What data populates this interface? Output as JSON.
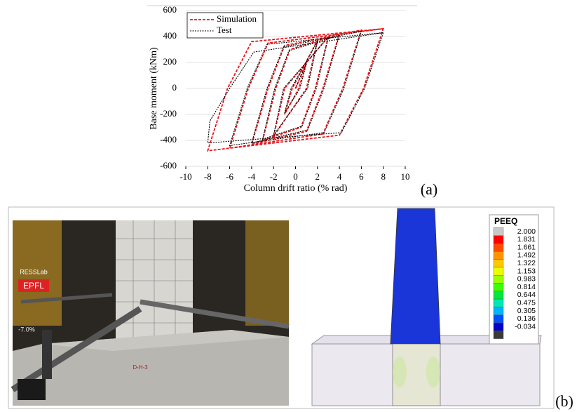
{
  "chart_data": {
    "type": "line",
    "x_label": "Column drift ratio (% rad)",
    "y_label": "Base moment (kNm)",
    "xlim": [
      -10,
      10
    ],
    "ylim": [
      -600,
      600
    ],
    "xticks": [
      -10,
      -8,
      -6,
      -4,
      -2,
      0,
      2,
      4,
      6,
      8,
      10
    ],
    "yticks": [
      -600,
      -400,
      -200,
      0,
      200,
      400,
      600
    ],
    "grid": true,
    "legend": "upper left",
    "series": [
      {
        "name": "Simulation",
        "color": "#e8141b",
        "line_style": "dashed",
        "x": [
          0,
          1,
          0.3,
          -1,
          -0.3,
          2,
          1,
          -2,
          -1,
          3,
          1.8,
          0.5,
          -3,
          -1.8,
          -0.5,
          4,
          2.5,
          1,
          -4,
          -2.5,
          -1,
          6,
          4.3,
          2.5,
          -6,
          -4.3,
          -2.5,
          8,
          6.2,
          4,
          -8,
          -6.2,
          -4,
          8
        ],
        "values": [
          0,
          200,
          0,
          -200,
          0,
          370,
          0,
          -370,
          0,
          400,
          0,
          -300,
          -400,
          0,
          300,
          420,
          0,
          -330,
          -430,
          0,
          330,
          450,
          0,
          -350,
          -460,
          0,
          350,
          460,
          0,
          -360,
          -480,
          0,
          360,
          460
        ]
      },
      {
        "name": "Test",
        "color": "#000000",
        "line_style": "dashed",
        "x": [
          0,
          1,
          0.4,
          -1,
          -0.4,
          2,
          1.1,
          -2,
          -1.1,
          3,
          1.9,
          0.6,
          -3,
          -1.9,
          -0.6,
          4,
          2.6,
          1.1,
          -4,
          -2.6,
          -1.1,
          6,
          4.4,
          2.6,
          -6,
          -4.4,
          -2.6,
          8,
          6.3,
          4.2,
          -8,
          -7.8,
          -6,
          -3.8,
          8
        ],
        "values": [
          0,
          190,
          0,
          -190,
          0,
          360,
          0,
          -360,
          0,
          395,
          0,
          -290,
          -390,
          0,
          290,
          410,
          0,
          -320,
          -420,
          0,
          320,
          440,
          0,
          -340,
          -440,
          0,
          340,
          430,
          0,
          -340,
          -420,
          -250,
          0,
          280,
          430
        ]
      }
    ]
  },
  "panel_a_label": "(a)",
  "photo": {
    "labels": [
      "RESSLab",
      "EPFL",
      "-7.0%",
      "D-H-3"
    ]
  },
  "contour": {
    "title": "PEEQ",
    "levels": [
      {
        "label": "2.000",
        "color": "#c8c8c8"
      },
      {
        "label": "1.831",
        "color": "#ff0000"
      },
      {
        "label": "1.661",
        "color": "#ff4a00"
      },
      {
        "label": "1.492",
        "color": "#ff9400"
      },
      {
        "label": "1.322",
        "color": "#ffc800"
      },
      {
        "label": "1.153",
        "color": "#e8ff00"
      },
      {
        "label": "0.983",
        "color": "#9cff00"
      },
      {
        "label": "0.814",
        "color": "#3cff00"
      },
      {
        "label": "0.644",
        "color": "#00e83c"
      },
      {
        "label": "0.475",
        "color": "#00e8b4"
      },
      {
        "label": "0.305",
        "color": "#00b4ff"
      },
      {
        "label": "0.136",
        "color": "#0050ff"
      },
      {
        "label": "-0.034",
        "color": "#0000c8"
      }
    ]
  },
  "panel_b_label": "(b)"
}
